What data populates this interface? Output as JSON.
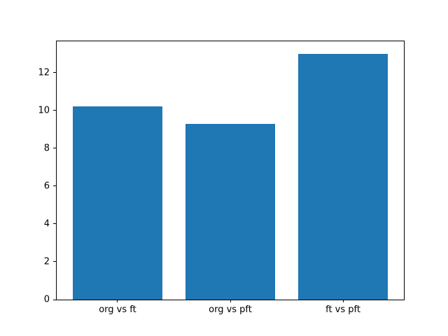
{
  "figure": {
    "background": "#ffffff"
  },
  "chart_data": {
    "type": "bar",
    "title": "",
    "xlabel": "",
    "ylabel": "",
    "categories": [
      "org vs ft",
      "org vs pft",
      "ft vs pft"
    ],
    "values": [
      10.2,
      9.3,
      13.0
    ],
    "yticks": [
      0,
      2,
      4,
      6,
      8,
      10,
      12
    ],
    "ylim": [
      0,
      13.65
    ],
    "xlim": [
      -0.54,
      2.54
    ],
    "bar_width": 0.8,
    "bar_color": "#1f77b4",
    "axis_color": "#000000",
    "grid": false,
    "legend": null
  }
}
